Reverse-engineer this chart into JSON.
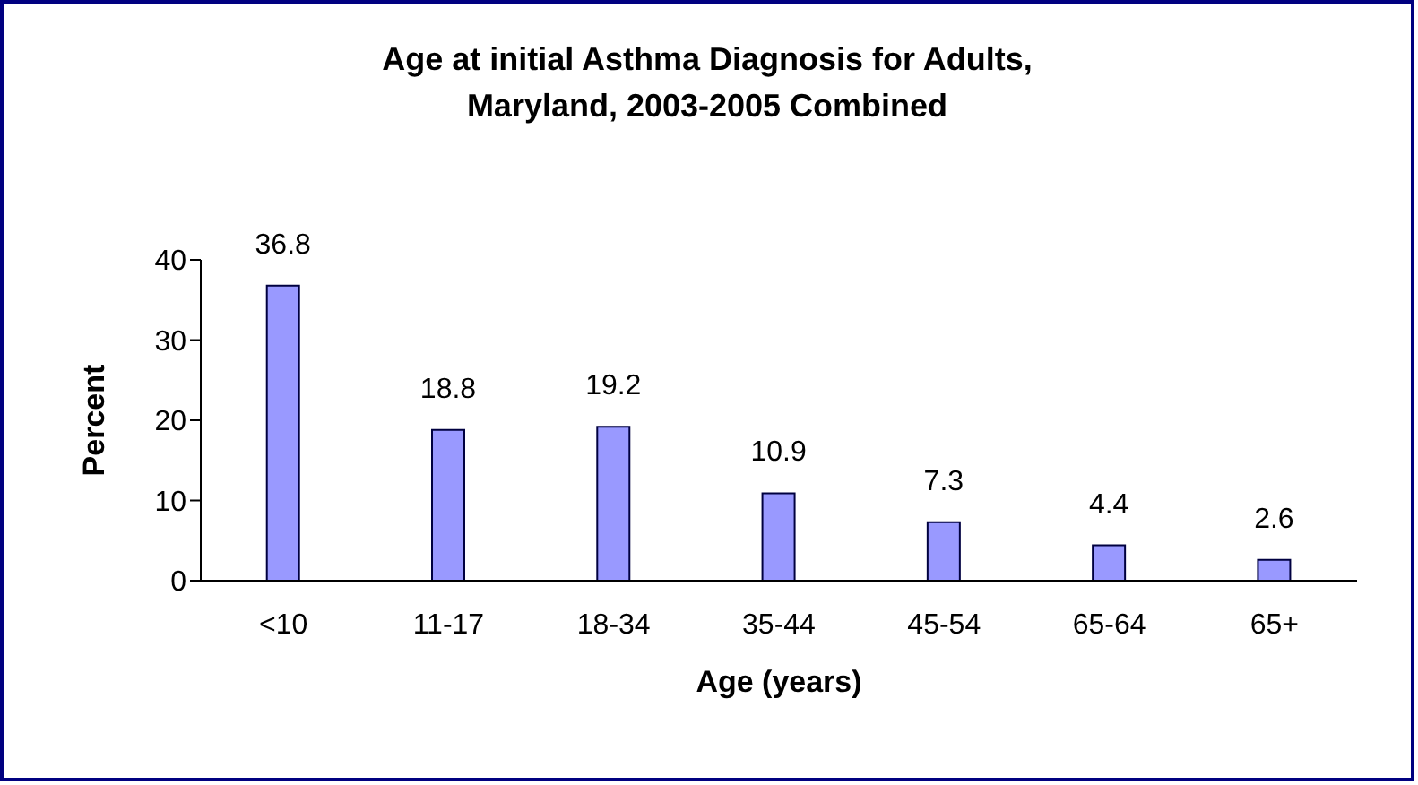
{
  "chart_data": {
    "type": "bar",
    "title": "Age at initial Asthma Diagnosis for Adults, Maryland, 2003-2005 Combined",
    "xlabel": "Age (years)",
    "ylabel": "Percent",
    "categories": [
      "<10",
      "11-17",
      "18-34",
      "35-44",
      "45-54",
      "65-64",
      "65+"
    ],
    "values": [
      36.8,
      18.8,
      19.2,
      10.9,
      7.3,
      4.4,
      2.6
    ],
    "color": "#9999ff",
    "ylim": [
      0,
      40
    ],
    "yticks": [
      0,
      10,
      20,
      30,
      40
    ],
    "data_labels": true,
    "legend": false
  }
}
